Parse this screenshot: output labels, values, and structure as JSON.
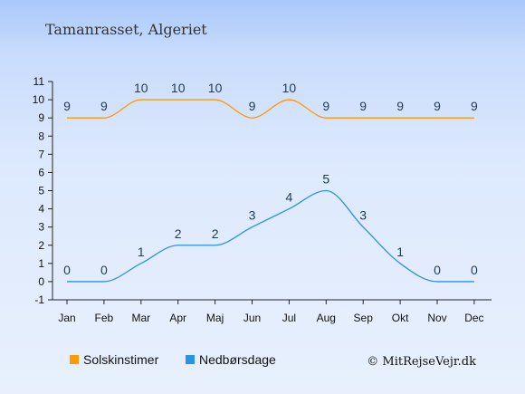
{
  "title": "Tamanrasset, Algeriet",
  "credit": "© MitRejseVejr.dk",
  "chart_data": {
    "type": "line",
    "categories": [
      "Jan",
      "Feb",
      "Mar",
      "Apr",
      "Maj",
      "Jun",
      "Jul",
      "Aug",
      "Sep",
      "Okt",
      "Nov",
      "Dec"
    ],
    "ylim": [
      -1,
      11
    ],
    "yticks": [
      -1,
      0,
      1,
      2,
      3,
      4,
      5,
      6,
      7,
      8,
      9,
      10,
      11
    ],
    "grid": false,
    "legend_placement": "bottom",
    "series": [
      {
        "name": "Solskinstimer",
        "color": "#ff9900",
        "values": [
          9,
          9,
          10,
          10,
          10,
          9,
          10,
          9,
          9,
          9,
          9,
          9
        ]
      },
      {
        "name": "Nedbørsdage",
        "color": "#2a92e6",
        "values": [
          0,
          0,
          1,
          2,
          2,
          3,
          4,
          5,
          3,
          1,
          0,
          0
        ]
      }
    ]
  }
}
